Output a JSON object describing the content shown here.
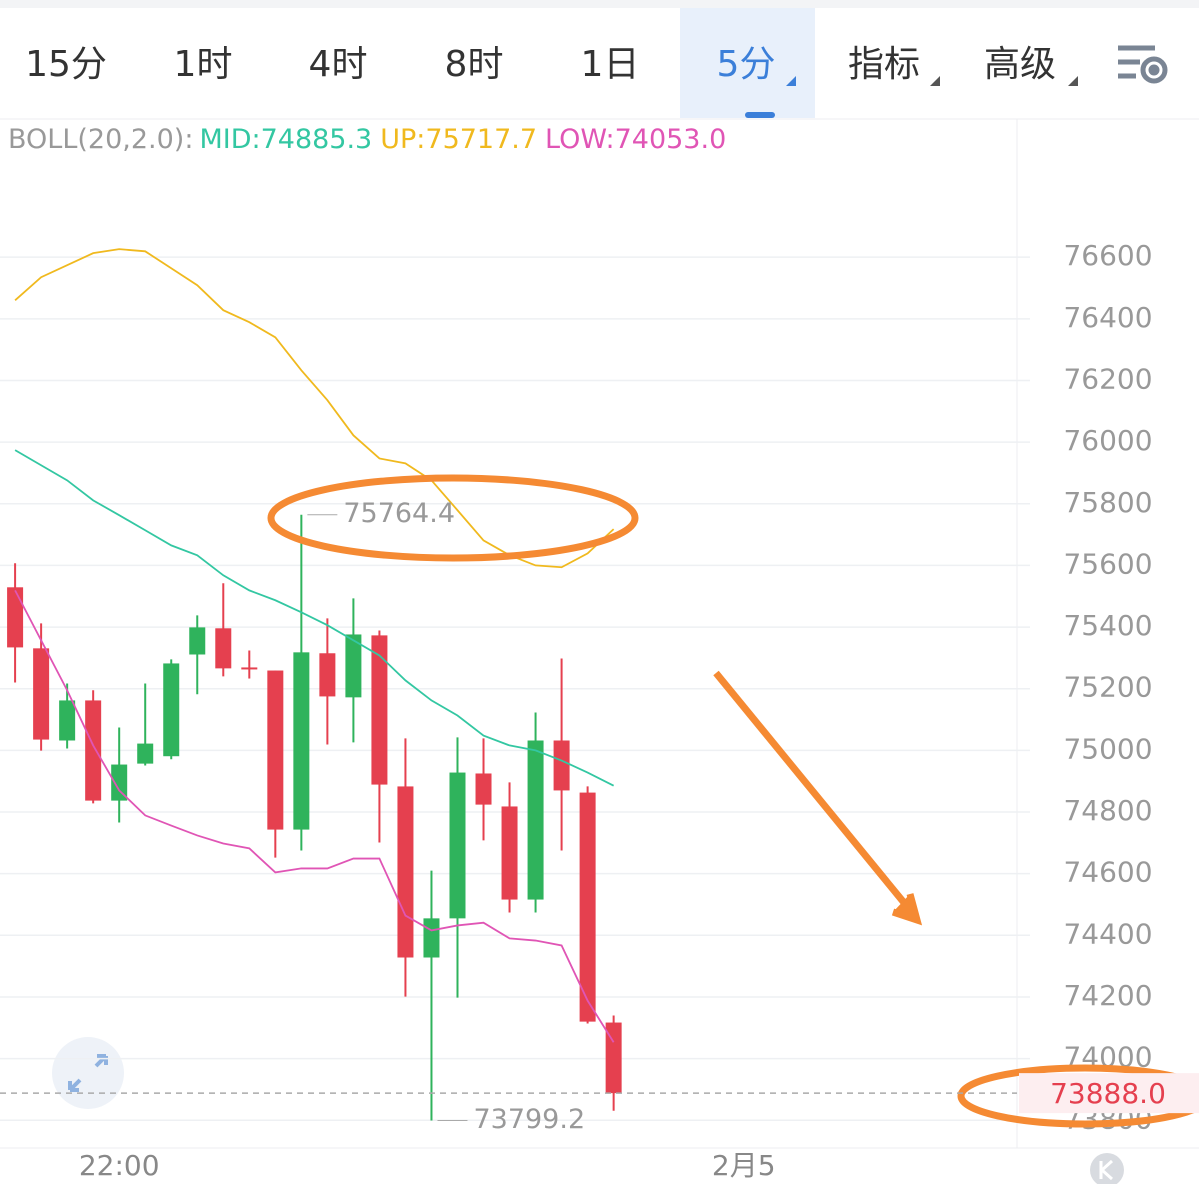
{
  "tabs": [
    "15分",
    "1时",
    "4时",
    "8时",
    "1日",
    "5分",
    "指标",
    "高级"
  ],
  "active_tab": 5,
  "indicator": {
    "label": "BOLL(20,2.0):",
    "items": [
      "MID:74885.3",
      "UP:75717.7",
      "LOW:74053.0"
    ],
    "colors": [
      "#33c7a2",
      "#f0b91e",
      "#e055b5"
    ]
  },
  "chart_data": {
    "type": "candlestick",
    "up_color": "#2fb35c",
    "down_color": "#e5404f",
    "open": [
      75529,
      75331,
      75032,
      75162,
      74837,
      74957,
      74981,
      75311,
      75396,
      75269,
      75259,
      74743,
      75315,
      75172,
      75373,
      74883,
      74328,
      74455,
      74925,
      74818,
      74516,
      75032,
      74863,
      74117
    ],
    "high": [
      75607,
      75412,
      75217,
      75195,
      75074,
      75217,
      75295,
      75438,
      75542,
      75324,
      75259,
      75764.4,
      75428,
      75493,
      75389,
      75039,
      74610,
      75042,
      75039,
      74896,
      75123,
      75298,
      74883,
      74140
    ],
    "low": [
      75220,
      74999,
      75006,
      74828,
      74766,
      74951,
      74971,
      75182,
      75240,
      75233,
      74652,
      74675,
      75019,
      75026,
      74701,
      74201,
      73799.2,
      74198,
      74708,
      74474,
      74474,
      74675,
      74114,
      73831
    ],
    "close": [
      75334,
      75035,
      75162,
      74837,
      74954,
      75022,
      75282,
      75399,
      75266,
      75269,
      74743,
      75318,
      75175,
      75376,
      74889,
      74328,
      74455,
      74928,
      74824,
      74516,
      75032,
      74870,
      74120,
      73888
    ],
    "series": [
      {
        "color": "#f0b91e",
        "values": [
          76460,
          76535,
          76574,
          76613,
          76626,
          76619,
          76564,
          76509,
          76428,
          76389,
          76340,
          76233,
          76136,
          76022,
          75947,
          75931,
          75876,
          75779,
          75681,
          75633,
          75600,
          75594,
          75639,
          75717.7
        ]
      },
      {
        "color": "#33c7a2",
        "values": [
          75974,
          75925,
          75876,
          75811,
          75763,
          75714,
          75665,
          75633,
          75568,
          75519,
          75487,
          75448,
          75406,
          75357,
          75308,
          75227,
          75162,
          75113,
          75048,
          75016,
          75000,
          74967,
          74928,
          74885.3
        ]
      },
      {
        "color": "#e055b5",
        "values": [
          75519,
          75357,
          75195,
          75016,
          74870,
          74789,
          74756,
          74724,
          74698,
          74682,
          74604,
          74617,
          74617,
          74649,
          74649,
          74464,
          74416,
          74432,
          74441,
          74390,
          74383,
          74367,
          74188,
          74053
        ]
      }
    ],
    "ylim": [
      73710,
      77045
    ],
    "yticks": [
      73800,
      74000,
      74200,
      74400,
      74600,
      74800,
      75000,
      75200,
      75400,
      75600,
      75800,
      76000,
      76200,
      76400,
      76600
    ],
    "xlim": [
      -0.58,
      38.5
    ],
    "xticks": [
      {
        "value": 4,
        "label": "22:00"
      },
      {
        "value": 28,
        "label": "2月5"
      }
    ],
    "grid": true,
    "high_label_index": 11,
    "low_label_index": 16,
    "last_price": {
      "value": 73888,
      "label": "73888.0"
    }
  }
}
